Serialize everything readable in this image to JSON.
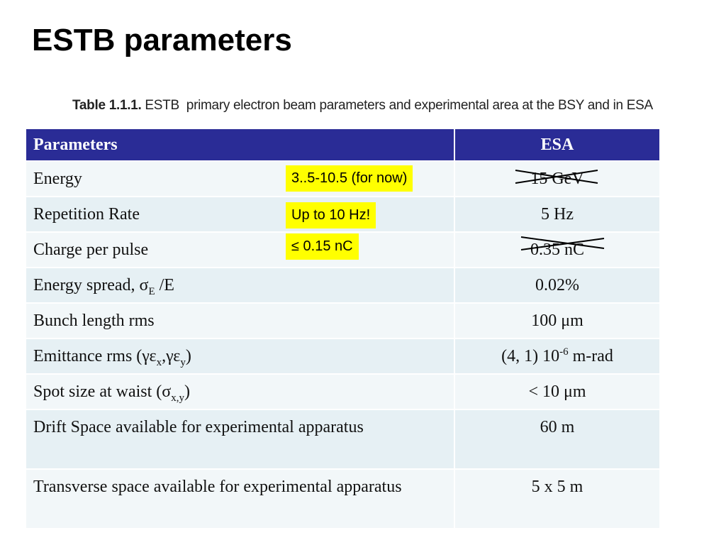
{
  "title": "ESTB parameters",
  "caption": {
    "label": "Table 1.1.1.",
    "text": "ESTB  primary electron beam parameters and experimental area at the BSY and in ESA"
  },
  "table": {
    "header": [
      "Parameters",
      "ESA"
    ],
    "rows": [
      [
        [
          "Energy"
        ],
        [
          "15 GeV"
        ]
      ],
      [
        [
          "Repetition Rate"
        ],
        [
          "5 Hz"
        ]
      ],
      [
        [
          "Charge per pulse"
        ],
        [
          "0.35 nC"
        ]
      ],
      [
        [
          "Energy spread, σ",
          "E",
          " /E"
        ],
        [
          "0.02%"
        ]
      ],
      [
        [
          "Bunch length rms"
        ],
        [
          "100 μm"
        ]
      ],
      [
        [
          "Emittance rms (γε",
          "x",
          ",γε",
          "y",
          ")"
        ],
        [
          "(4, 1) 10",
          "-6",
          " m-rad"
        ]
      ],
      [
        [
          "Spot size at waist (σ",
          "x,y",
          ")"
        ],
        [
          "< 10 μm"
        ]
      ],
      [
        [
          "Drift Space available for experimental apparatus"
        ],
        [
          "60 m"
        ]
      ],
      [
        [
          "Transverse space available for experimental apparatus"
        ],
        [
          "5 x 5 m"
        ]
      ]
    ]
  },
  "notes": [
    "3..5-10.5 (for now)",
    "Up to 10 Hz!",
    "≤ 0.15 nC"
  ]
}
